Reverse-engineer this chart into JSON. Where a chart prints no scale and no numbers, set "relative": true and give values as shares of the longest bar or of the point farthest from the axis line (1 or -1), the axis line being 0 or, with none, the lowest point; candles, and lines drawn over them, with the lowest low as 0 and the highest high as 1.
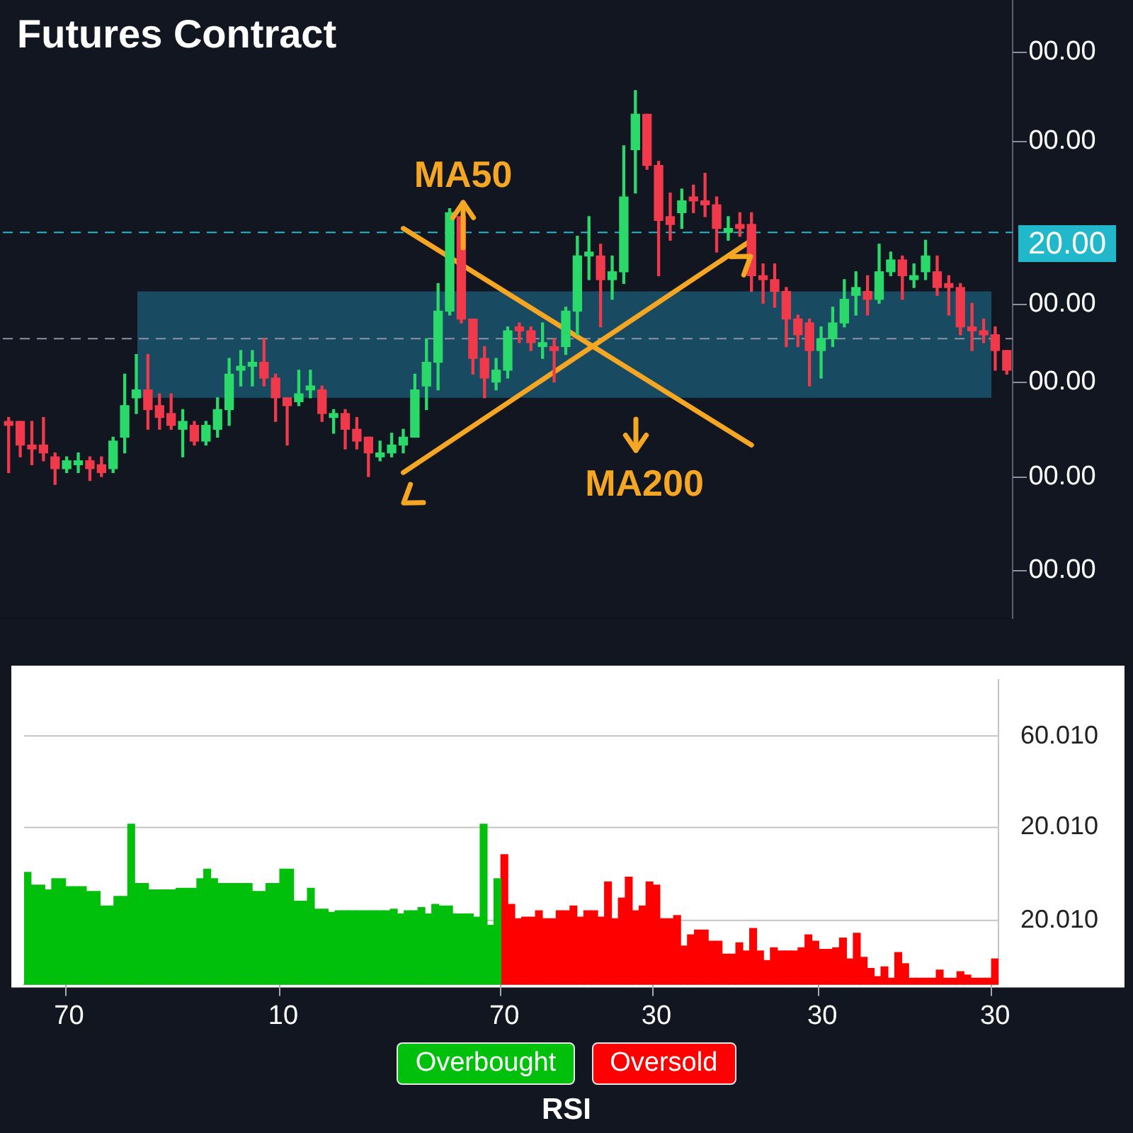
{
  "chart_data": [
    {
      "type": "candlestick",
      "title": "Futures Contract",
      "relative": true,
      "categories": [
        null,
        null,
        null,
        null,
        null,
        null,
        null,
        null,
        null,
        null,
        null,
        null,
        null,
        null,
        null,
        null,
        null,
        null,
        null,
        null,
        null,
        null,
        null,
        null,
        null,
        null,
        null,
        null,
        null,
        null,
        null,
        null,
        null,
        null,
        null,
        null,
        null,
        null,
        null,
        null,
        null,
        null,
        null,
        null,
        null,
        null,
        null,
        null,
        null,
        null,
        null,
        null,
        null,
        null,
        null,
        null,
        null,
        null,
        null,
        null,
        null,
        null,
        null,
        null,
        null,
        null,
        null,
        null,
        null,
        null,
        null,
        null,
        null,
        null,
        null,
        null,
        null,
        null,
        null,
        null,
        null,
        null,
        null,
        null,
        null,
        null,
        null
      ],
      "ohlc": [
        [
          0.16,
          0.17,
          0.03,
          0.15
        ],
        [
          0.16,
          0.16,
          0.07,
          0.1
        ],
        [
          0.1,
          0.16,
          0.05,
          0.09
        ],
        [
          0.1,
          0.17,
          0.06,
          0.08
        ],
        [
          0.07,
          0.08,
          0,
          0.04
        ],
        [
          0.04,
          0.07,
          0.03,
          0.06
        ],
        [
          0.05,
          0.08,
          0.03,
          0.06
        ],
        [
          0.06,
          0.07,
          0.01,
          0.04
        ],
        [
          0.05,
          0.07,
          0.02,
          0.03
        ],
        [
          0.04,
          0.12,
          0.03,
          0.11
        ],
        [
          0.12,
          0.28,
          0.08,
          0.2
        ],
        [
          0.22,
          0.33,
          0.18,
          0.24
        ],
        [
          0.24,
          0.33,
          0.14,
          0.19
        ],
        [
          0.2,
          0.23,
          0.14,
          0.17
        ],
        [
          0.18,
          0.23,
          0.14,
          0.15
        ],
        [
          0.14,
          0.19,
          0.07,
          0.16
        ],
        [
          0.15,
          0.16,
          0.1,
          0.11
        ],
        [
          0.11,
          0.16,
          0.1,
          0.15
        ],
        [
          0.14,
          0.22,
          0.12,
          0.19
        ],
        [
          0.19,
          0.32,
          0.15,
          0.28
        ],
        [
          0.29,
          0.34,
          0.25,
          0.3
        ],
        [
          0.3,
          0.34,
          0.25,
          0.31
        ],
        [
          0.31,
          0.37,
          0.25,
          0.27
        ],
        [
          0.27,
          0.28,
          0.16,
          0.22
        ],
        [
          0.22,
          0.22,
          0.1,
          0.2
        ],
        [
          0.21,
          0.29,
          0.2,
          0.23
        ],
        [
          0.24,
          0.29,
          0.22,
          0.25
        ],
        [
          0.24,
          0.25,
          0.16,
          0.18
        ],
        [
          0.17,
          0.19,
          0.13,
          0.18
        ],
        [
          0.18,
          0.19,
          0.09,
          0.14
        ],
        [
          0.14,
          0.17,
          0.09,
          0.11
        ],
        [
          0.12,
          0.12,
          0.02,
          0.08
        ],
        [
          0.07,
          0.11,
          0.06,
          0.08
        ],
        [
          0.08,
          0.13,
          0.07,
          0.1
        ],
        [
          0.1,
          0.14,
          0.08,
          0.12
        ],
        [
          0.12,
          0.28,
          0.12,
          0.24
        ],
        [
          0.25,
          0.37,
          0.19,
          0.31
        ],
        [
          0.31,
          0.51,
          0.24,
          0.44
        ],
        [
          0.44,
          0.7,
          0.43,
          0.69
        ],
        [
          0.68,
          0.68,
          0.41,
          0.42
        ],
        [
          0.42,
          0.42,
          0.28,
          0.32
        ],
        [
          0.32,
          0.35,
          0.22,
          0.27
        ],
        [
          0.26,
          0.32,
          0.24,
          0.29
        ],
        [
          0.29,
          0.4,
          0.27,
          0.39
        ],
        [
          0.4,
          0.41,
          0.36,
          0.39
        ],
        [
          0.39,
          0.4,
          0.34,
          0.36
        ],
        [
          0.35,
          0.41,
          0.32,
          0.36
        ],
        [
          0.35,
          0.37,
          0.26,
          0.34
        ],
        [
          0.35,
          0.45,
          0.33,
          0.44
        ],
        [
          0.44,
          0.63,
          0.38,
          0.58
        ],
        [
          0.58,
          0.68,
          0.52,
          0.59
        ],
        [
          0.58,
          0.61,
          0.4,
          0.52
        ],
        [
          0.52,
          0.58,
          0.47,
          0.54
        ],
        [
          0.54,
          0.86,
          0.51,
          0.73
        ],
        [
          0.85,
          1,
          0.74,
          0.94
        ],
        [
          0.94,
          0.94,
          0.8,
          0.81
        ],
        [
          0.81,
          0.82,
          0.53,
          0.67
        ],
        [
          0.68,
          0.74,
          0.62,
          0.66
        ],
        [
          0.69,
          0.75,
          0.65,
          0.72
        ],
        [
          0.73,
          0.76,
          0.69,
          0.72
        ],
        [
          0.72,
          0.79,
          0.68,
          0.71
        ],
        [
          0.71,
          0.73,
          0.59,
          0.65
        ],
        [
          0.64,
          0.68,
          0.62,
          0.65
        ],
        [
          0.66,
          0.69,
          0.63,
          0.65
        ],
        [
          0.66,
          0.69,
          0.49,
          0.53
        ],
        [
          0.53,
          0.56,
          0.46,
          0.52
        ],
        [
          0.52,
          0.56,
          0.45,
          0.49
        ],
        [
          0.49,
          0.5,
          0.35,
          0.42
        ],
        [
          0.42,
          0.43,
          0.35,
          0.38
        ],
        [
          0.41,
          0.42,
          0.25,
          0.34
        ],
        [
          0.34,
          0.4,
          0.27,
          0.37
        ],
        [
          0.37,
          0.45,
          0.35,
          0.41
        ],
        [
          0.41,
          0.52,
          0.4,
          0.47
        ],
        [
          0.48,
          0.54,
          0.43,
          0.5
        ],
        [
          0.49,
          0.53,
          0.43,
          0.47
        ],
        [
          0.47,
          0.61,
          0.46,
          0.54
        ],
        [
          0.54,
          0.59,
          0.53,
          0.57
        ],
        [
          0.57,
          0.58,
          0.47,
          0.53
        ],
        [
          0.52,
          0.56,
          0.5,
          0.53
        ],
        [
          0.54,
          0.62,
          0.52,
          0.58
        ],
        [
          0.54,
          0.58,
          0.48,
          0.5
        ],
        [
          0.51,
          0.53,
          0.43,
          0.5
        ],
        [
          0.5,
          0.51,
          0.38,
          0.4
        ],
        [
          0.4,
          0.46,
          0.34,
          0.39
        ],
        [
          0.39,
          0.42,
          0.36,
          0.38
        ],
        [
          0.38,
          0.4,
          0.29,
          0.34
        ],
        [
          0.34,
          0.34,
          0.28,
          0.29
        ]
      ],
      "ref_lines": [
        {
          "axis": "y",
          "value": 0.64,
          "color": "#22b8cc",
          "line_style": "dashed"
        },
        {
          "axis": "y",
          "value": 0.37,
          "color": "#8a93a6",
          "line_style": "dashed"
        }
      ],
      "bands": [
        {
          "axis": "y",
          "from": 0.22,
          "to": 0.49,
          "color": "#1d6e8c"
        }
      ],
      "series": [
        {
          "type": "line",
          "color": "#f5a623",
          "values": [
            null,
            null,
            null,
            null,
            null,
            null,
            null,
            null,
            null,
            null,
            null,
            null,
            null,
            null,
            null,
            null,
            null,
            null,
            null,
            null,
            null,
            null,
            null,
            null,
            null,
            null,
            null,
            null,
            null,
            null,
            null,
            null,
            null,
            null,
            0.65,
            null,
            null,
            null,
            null,
            null,
            null,
            null,
            null,
            null,
            null,
            null,
            null,
            null,
            null,
            null,
            null,
            null,
            null,
            null,
            null,
            null,
            null,
            null,
            null,
            null,
            null,
            null,
            null,
            null,
            0.1,
            null,
            null,
            null,
            null,
            null,
            null,
            null,
            null,
            null,
            null,
            null,
            null,
            null,
            null,
            null,
            null,
            null,
            null,
            null,
            null,
            null,
            null
          ]
        },
        {
          "type": "line",
          "color": "#f5a623",
          "values": [
            null,
            null,
            null,
            null,
            null,
            null,
            null,
            null,
            null,
            null,
            null,
            null,
            null,
            null,
            null,
            null,
            null,
            null,
            null,
            null,
            null,
            null,
            null,
            null,
            null,
            null,
            null,
            null,
            null,
            null,
            null,
            null,
            null,
            null,
            0.03,
            null,
            null,
            null,
            null,
            null,
            null,
            null,
            null,
            null,
            null,
            null,
            null,
            null,
            null,
            null,
            null,
            null,
            null,
            null,
            null,
            null,
            null,
            null,
            null,
            null,
            null,
            null,
            null,
            null,
            0.62,
            null,
            null,
            null,
            null,
            null,
            null,
            null,
            null,
            null,
            null,
            null,
            null,
            null,
            null,
            null,
            null,
            null,
            null,
            null,
            null,
            null,
            null
          ]
        }
      ],
      "annotations": [
        "MA50",
        "MA200",
        "00.00",
        "00.00",
        "00.00",
        "00.00",
        "00.00",
        "00.00",
        "20.00"
      ]
    },
    {
      "type": "bar",
      "relative": true,
      "xlabel": "RSI",
      "legend": "bottom",
      "ref_lines": [
        {
          "axis": "y",
          "value": 1.55,
          "color": "#c4c4c4"
        },
        {
          "axis": "y",
          "value": 0.98,
          "color": "#c4c4c4"
        },
        {
          "axis": "y",
          "value": 0.4,
          "color": "#c4c4c4"
        }
      ],
      "categories": [
        null,
        null,
        null,
        null,
        null,
        null,
        "70",
        null,
        null,
        null,
        null,
        null,
        null,
        null,
        null,
        null,
        null,
        null,
        null,
        null,
        null,
        null,
        null,
        null,
        null,
        null,
        null,
        null,
        null,
        null,
        null,
        null,
        null,
        null,
        null,
        null,
        null,
        "10",
        null,
        null,
        null,
        null,
        null,
        null,
        null,
        null,
        null,
        null,
        null,
        null,
        null,
        null,
        null,
        null,
        null,
        null,
        null,
        null,
        null,
        null,
        null,
        null,
        null,
        null,
        null,
        null,
        null,
        null,
        null,
        "70",
        null,
        null,
        null,
        null,
        null,
        null,
        null,
        null,
        null,
        null,
        null,
        null,
        null,
        null,
        null,
        null,
        null,
        null,
        null,
        null,
        null,
        "30",
        null,
        null,
        null,
        null,
        null,
        null,
        null,
        null,
        null,
        null,
        null,
        null,
        null,
        null,
        null,
        null,
        null,
        null,
        null,
        null,
        null,
        null,
        null,
        "30",
        null,
        null,
        null,
        null,
        null,
        null,
        null,
        null,
        null,
        null,
        null,
        null,
        null,
        null,
        null,
        null,
        null,
        null,
        null,
        null,
        null,
        null,
        null,
        null,
        "30"
      ],
      "annotations": [
        "60.010",
        "20.010",
        "20.010"
      ],
      "series": [
        {
          "name": "Overbought",
          "color": "#00c00c",
          "values": [
            0.7,
            0.62,
            0.62,
            0.59,
            0.66,
            0.66,
            0.61,
            0.61,
            0.61,
            0.58,
            0.58,
            0.49,
            0.49,
            0.55,
            0.55,
            1.0,
            0.63,
            0.63,
            0.59,
            0.59,
            0.59,
            0.59,
            0.6,
            0.6,
            0.6,
            0.66,
            0.72,
            0.66,
            0.63,
            0.63,
            0.63,
            0.63,
            0.63,
            0.58,
            0.58,
            0.63,
            0.63,
            0.72,
            0.72,
            0.52,
            0.52,
            0.6,
            0.47,
            0.47,
            0.45,
            0.46,
            0.46,
            0.46,
            0.46,
            0.46,
            0.46,
            0.46,
            0.46,
            0.47,
            0.44,
            0.46,
            0.46,
            0.48,
            0.44,
            0.5,
            0.49,
            0.49,
            0.44,
            0.44,
            0.44,
            0.42,
            1.0,
            0.37,
            0.66,
            null,
            null,
            null,
            null,
            null,
            null,
            null,
            null,
            null,
            null,
            null,
            null,
            null,
            null,
            null,
            null,
            null,
            null,
            null,
            null,
            null,
            null,
            null,
            null,
            null,
            null,
            null,
            null,
            null,
            null,
            null,
            null,
            null,
            null,
            null,
            null,
            null,
            null,
            null,
            null,
            null,
            null,
            null,
            null,
            null,
            null,
            null,
            null,
            null,
            null,
            null,
            null,
            null,
            null,
            null,
            null,
            null,
            null,
            null,
            null,
            null,
            null,
            null,
            null,
            null,
            null,
            null,
            null,
            null,
            null,
            null,
            null
          ]
        },
        {
          "name": "Oversold",
          "color": "#ff0000",
          "values": [
            null,
            null,
            null,
            null,
            null,
            null,
            null,
            null,
            null,
            null,
            null,
            null,
            null,
            null,
            null,
            null,
            null,
            null,
            null,
            null,
            null,
            null,
            null,
            null,
            null,
            null,
            null,
            null,
            null,
            null,
            null,
            null,
            null,
            null,
            null,
            null,
            null,
            null,
            null,
            null,
            null,
            null,
            null,
            null,
            null,
            null,
            null,
            null,
            null,
            null,
            null,
            null,
            null,
            null,
            null,
            null,
            null,
            null,
            null,
            null,
            null,
            null,
            null,
            null,
            null,
            null,
            null,
            null,
            null,
            0.81,
            0.5,
            0.41,
            0.42,
            0.42,
            0.46,
            0.41,
            0.41,
            0.46,
            0.46,
            0.49,
            0.42,
            0.46,
            0.46,
            0.42,
            0.64,
            0.41,
            0.54,
            0.67,
            0.46,
            0.49,
            0.64,
            0.62,
            0.41,
            0.41,
            0.43,
            0.24,
            0.31,
            0.34,
            0.34,
            0.27,
            0.27,
            0.19,
            0.19,
            0.26,
            0.21,
            0.35,
            0.21,
            0.15,
            0.23,
            0.21,
            0.21,
            0.21,
            0.23,
            0.31,
            0.27,
            0.22,
            0.22,
            0.23,
            0.29,
            0.16,
            0.32,
            0.17,
            0.1,
            0.05,
            0.11,
            0.04,
            0.2,
            0.13,
            0.04,
            0.04,
            0.04,
            0.04,
            0.09,
            0.04,
            0.04,
            0.08,
            0.06,
            0.04,
            0.04,
            0.04,
            0.16
          ]
        }
      ]
    }
  ]
}
